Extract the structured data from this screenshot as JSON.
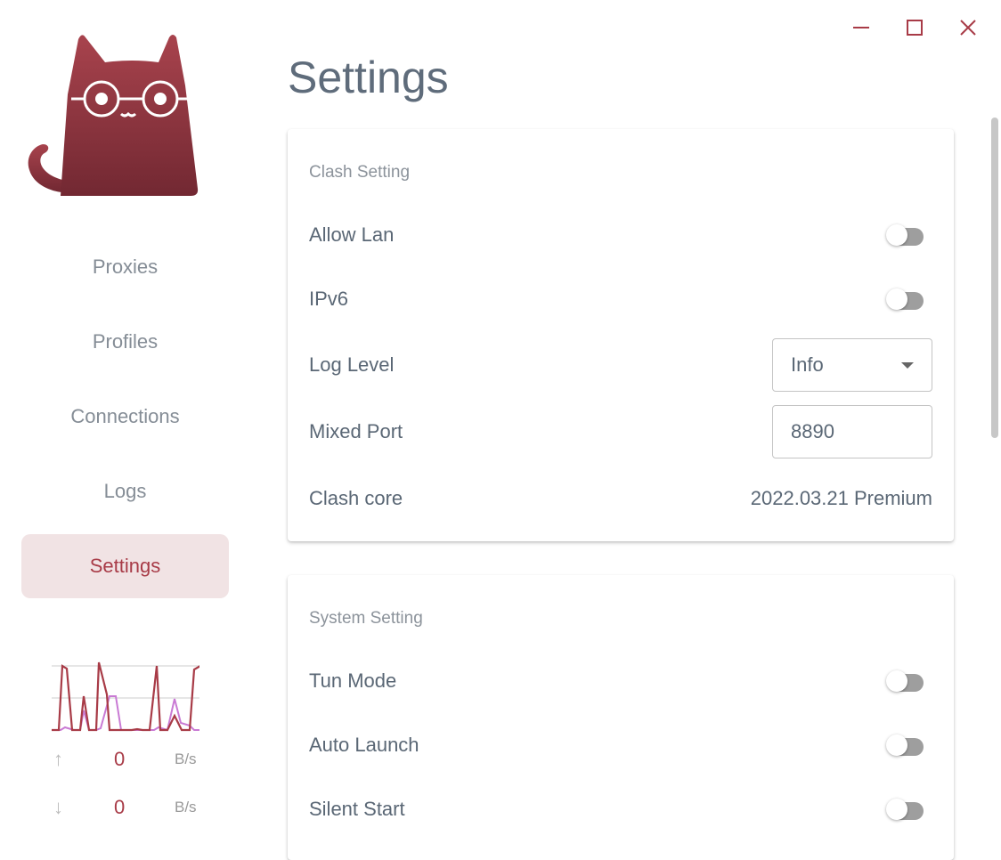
{
  "window": {
    "minimize_icon": "minimize-icon",
    "maximize_icon": "maximize-icon",
    "close_icon": "close-icon",
    "accent": "#a83b47"
  },
  "sidebar": {
    "logo": "cat-logo",
    "items": [
      {
        "label": "Proxies"
      },
      {
        "label": "Profiles"
      },
      {
        "label": "Connections"
      },
      {
        "label": "Logs"
      },
      {
        "label": "Settings",
        "active": true
      }
    ]
  },
  "traffic": {
    "upload": {
      "value": "0",
      "unit": "B/s",
      "icon": "arrow-up-icon"
    },
    "download": {
      "value": "0",
      "unit": "B/s",
      "icon": "arrow-down-icon"
    }
  },
  "page": {
    "title": "Settings"
  },
  "clash": {
    "title": "Clash Setting",
    "allow_lan": {
      "label": "Allow Lan",
      "on": false
    },
    "ipv6": {
      "label": "IPv6",
      "on": false
    },
    "log_level": {
      "label": "Log Level",
      "value": "Info"
    },
    "mixed_port": {
      "label": "Mixed Port",
      "value": "8890"
    },
    "core": {
      "label": "Clash core",
      "value": "2022.03.21 Premium"
    }
  },
  "system": {
    "title": "System Setting",
    "tun": {
      "label": "Tun Mode",
      "on": false
    },
    "auto_launch": {
      "label": "Auto Launch",
      "on": false
    },
    "silent_start": {
      "label": "Silent Start",
      "on": false
    }
  }
}
